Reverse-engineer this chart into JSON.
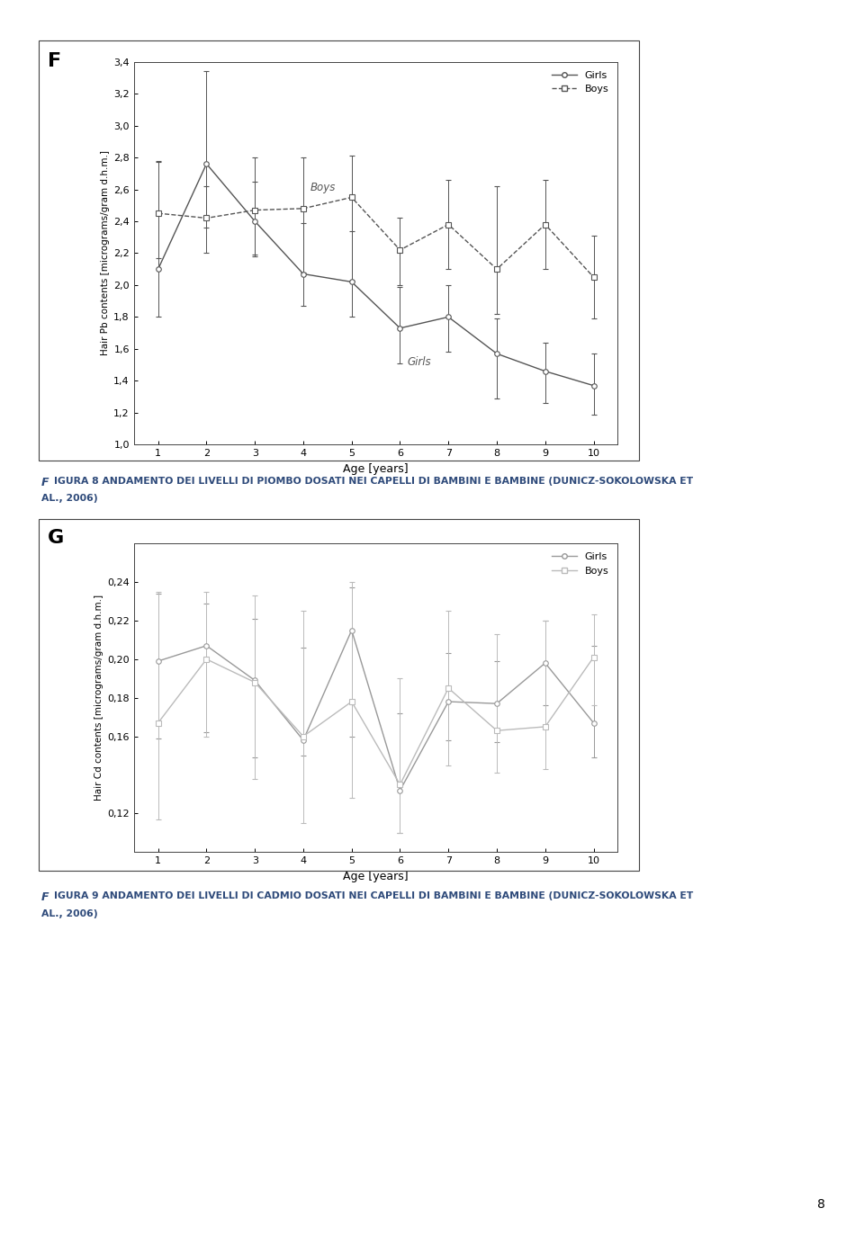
{
  "chart_F": {
    "label": "F",
    "ylabel": "Hair Pb contents [micrograms/gram d.h.m.]",
    "xlabel": "Age [years]",
    "ylim": [
      1.0,
      3.4
    ],
    "yticks": [
      1.0,
      1.2,
      1.4,
      1.6,
      1.8,
      2.0,
      2.2,
      2.4,
      2.6,
      2.8,
      3.0,
      3.2,
      3.4
    ],
    "ytick_labels": [
      "1,0",
      "1,2",
      "1,4",
      "1,6",
      "1,8",
      "2,0",
      "2,2",
      "2,4",
      "2,6",
      "2,8",
      "3,0",
      "3,2",
      "3,4"
    ],
    "xlim": [
      0.5,
      10.5
    ],
    "xticks": [
      1,
      2,
      3,
      4,
      5,
      6,
      7,
      8,
      9,
      10
    ],
    "girls": {
      "x": [
        1,
        2,
        3,
        4,
        5,
        6,
        7,
        8,
        9,
        10
      ],
      "y": [
        2.1,
        2.76,
        2.4,
        2.07,
        2.02,
        1.73,
        1.8,
        1.57,
        1.46,
        1.37
      ],
      "yerr_low": [
        0.3,
        0.4,
        0.22,
        0.2,
        0.22,
        0.22,
        0.22,
        0.28,
        0.2,
        0.18
      ],
      "yerr_high": [
        0.68,
        0.58,
        0.4,
        0.32,
        0.32,
        0.26,
        0.2,
        0.22,
        0.18,
        0.2
      ],
      "color": "#555555",
      "marker": "o",
      "linestyle": "-",
      "label": "Girls",
      "annotation": "Girls",
      "ann_x": 6.15,
      "ann_y": 1.52
    },
    "boys": {
      "x": [
        1,
        2,
        3,
        4,
        5,
        6,
        7,
        8,
        9,
        10
      ],
      "y": [
        2.45,
        2.42,
        2.47,
        2.48,
        2.55,
        2.22,
        2.38,
        2.1,
        2.38,
        2.05
      ],
      "yerr_low": [
        0.28,
        0.22,
        0.28,
        0.4,
        0.52,
        0.22,
        0.28,
        0.28,
        0.28,
        0.26
      ],
      "yerr_high": [
        0.32,
        0.2,
        0.18,
        0.32,
        0.26,
        0.2,
        0.28,
        0.52,
        0.28,
        0.26
      ],
      "color": "#555555",
      "marker": "s",
      "linestyle": "--",
      "label": "Boys",
      "annotation": "Boys",
      "ann_x": 4.15,
      "ann_y": 2.61
    }
  },
  "chart_G": {
    "label": "G",
    "ylabel": "Hair Cd contents [micrograms/gram d.h.m.]",
    "xlabel": "Age [years]",
    "ylim": [
      0.1,
      0.26
    ],
    "yticks": [
      0.12,
      0.16,
      0.18,
      0.2,
      0.22,
      0.24
    ],
    "ytick_labels": [
      "0,12",
      "0,16",
      "0,18",
      "0,20",
      "0,22",
      "0,24"
    ],
    "xlim": [
      0.5,
      10.5
    ],
    "xticks": [
      1,
      2,
      3,
      4,
      5,
      6,
      7,
      8,
      9,
      10
    ],
    "girls": {
      "x": [
        1,
        2,
        3,
        4,
        5,
        6,
        7,
        8,
        9,
        10
      ],
      "y": [
        0.199,
        0.207,
        0.189,
        0.158,
        0.215,
        0.132,
        0.178,
        0.177,
        0.198,
        0.167
      ],
      "yerr_low": [
        0.04,
        0.045,
        0.04,
        0.008,
        0.055,
        0.022,
        0.02,
        0.02,
        0.022,
        0.018
      ],
      "yerr_high": [
        0.035,
        0.022,
        0.032,
        0.048,
        0.022,
        0.04,
        0.025,
        0.022,
        0.022,
        0.04
      ],
      "color": "#999999",
      "marker": "o",
      "linestyle": "-",
      "label": "Girls"
    },
    "boys": {
      "x": [
        1,
        2,
        3,
        4,
        5,
        6,
        7,
        8,
        9,
        10
      ],
      "y": [
        0.167,
        0.2,
        0.188,
        0.16,
        0.178,
        0.135,
        0.185,
        0.163,
        0.165,
        0.201
      ],
      "yerr_low": [
        0.05,
        0.04,
        0.05,
        0.045,
        0.05,
        0.025,
        0.04,
        0.022,
        0.022,
        0.025
      ],
      "yerr_high": [
        0.068,
        0.035,
        0.045,
        0.065,
        0.062,
        0.055,
        0.04,
        0.05,
        0.055,
        0.022
      ],
      "color": "#bbbbbb",
      "marker": "s",
      "linestyle": "-",
      "label": "Boys"
    }
  },
  "caption_F_line1": "FıGURA 8 ANDAMENTO DEI LIVELLI DI PIOMBO DOSATI NEI CAPELLI DI BAMBINI E BAMBINE (DUNICZ-SOKOLOWSKA ET",
  "caption_F_line2": "AL., 2006)",
  "caption_G_line1": "FıGURA 9 ANDAMENTO DEI LIVELLI DI CADMIO DOSATI NEI CAPELLI DI BAMBINI E BAMBINE (DUNICZ-SOKOLOWSKA ET",
  "caption_G_line2": "AL., 2006)",
  "page_number": "8",
  "background_color": "#ffffff",
  "text_color": "#2e4a7a",
  "border_color": "#444444"
}
